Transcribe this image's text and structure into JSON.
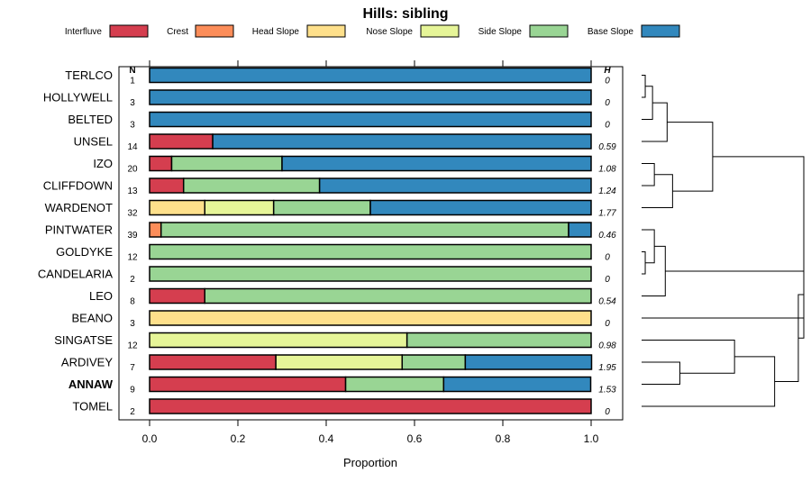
{
  "chart_data": {
    "type": "bar",
    "orientation": "horizontal-stacked",
    "title": "Hills: sibling",
    "xlabel": "Proportion",
    "xlim": [
      0,
      1
    ],
    "xticks": [
      "0.0",
      "0.2",
      "0.4",
      "0.6",
      "0.8",
      "1.0"
    ],
    "n_header": "N",
    "h_header": "H",
    "legend_position": "top",
    "legend": [
      {
        "name": "Interfluve",
        "color": "#d53e4f"
      },
      {
        "name": "Crest",
        "color": "#fc8d59"
      },
      {
        "name": "Head Slope",
        "color": "#fee08b"
      },
      {
        "name": "Nose Slope",
        "color": "#e6f598"
      },
      {
        "name": "Side Slope",
        "color": "#99d594"
      },
      {
        "name": "Base Slope",
        "color": "#3288bd"
      }
    ],
    "categories": [
      "TERLCO",
      "HOLLYWELL",
      "BELTED",
      "UNSEL",
      "IZO",
      "CLIFFDOWN",
      "WARDENOT",
      "PINTWATER",
      "GOLDYKE",
      "CANDELARIA",
      "LEO",
      "BEANO",
      "SINGATSE",
      "ARDIVEY",
      "ANNAW",
      "TOMEL"
    ],
    "highlight": "ANNAW",
    "n": [
      "1",
      "3",
      "3",
      "14",
      "20",
      "13",
      "32",
      "39",
      "12",
      "2",
      "8",
      "3",
      "12",
      "7",
      "9",
      "2"
    ],
    "h": [
      "0",
      "0",
      "0",
      "0.59",
      "1.08",
      "1.24",
      "1.77",
      "0.46",
      "0",
      "0",
      "0.54",
      "0",
      "0.98",
      "1.95",
      "1.53",
      "0"
    ],
    "series": [
      {
        "name": "Interfluve",
        "values": [
          0,
          0,
          0,
          0.143,
          0.05,
          0.077,
          0,
          0,
          0,
          0,
          0.125,
          0,
          0,
          0.286,
          0.444,
          1.0
        ]
      },
      {
        "name": "Crest",
        "values": [
          0,
          0,
          0,
          0,
          0,
          0,
          0,
          0.026,
          0,
          0,
          0,
          0,
          0,
          0,
          0,
          0
        ]
      },
      {
        "name": "Head Slope",
        "values": [
          0,
          0,
          0,
          0,
          0,
          0,
          0.125,
          0,
          0,
          0,
          0,
          1.0,
          0,
          0,
          0,
          0
        ]
      },
      {
        "name": "Nose Slope",
        "values": [
          0,
          0,
          0,
          0,
          0,
          0,
          0.156,
          0,
          0,
          0,
          0,
          0,
          0.583,
          0.286,
          0,
          0
        ]
      },
      {
        "name": "Side Slope",
        "values": [
          0,
          0,
          0,
          0,
          0.25,
          0.308,
          0.219,
          0.923,
          1.0,
          1.0,
          0.875,
          0,
          0.417,
          0.143,
          0.222,
          0
        ]
      },
      {
        "name": "Base Slope",
        "values": [
          1.0,
          1.0,
          1.0,
          0.857,
          0.7,
          0.615,
          0.5,
          0.051,
          0,
          0,
          0,
          0,
          0,
          0.286,
          0.333,
          0
        ]
      }
    ],
    "dendrogram": {
      "merges": [
        {
          "a": 0,
          "b": 1,
          "height": 0.02
        },
        {
          "a": "m0",
          "b": 2,
          "height": 0.06
        },
        {
          "a": "m1",
          "b": 3,
          "height": 0.14
        },
        {
          "a": 4,
          "b": 5,
          "height": 0.07
        },
        {
          "a": "m3",
          "b": 6,
          "height": 0.17
        },
        {
          "a": "m2",
          "b": "m4",
          "height": 0.39
        },
        {
          "a": 8,
          "b": 9,
          "height": 0.02
        },
        {
          "a": 7,
          "b": "m6",
          "height": 0.07
        },
        {
          "a": "m7",
          "b": 10,
          "height": 0.13
        },
        {
          "a": "m8",
          "b": 11,
          "height": 0.89
        },
        {
          "a": 13,
          "b": 14,
          "height": 0.21
        },
        {
          "a": 12,
          "b": "m10",
          "height": 0.51
        },
        {
          "a": "m11",
          "b": 15,
          "height": 0.73
        },
        {
          "a": "m9",
          "b": "m12",
          "height": 0.86
        },
        {
          "a": "m5",
          "b": "m13",
          "height": 0.89
        }
      ]
    }
  }
}
